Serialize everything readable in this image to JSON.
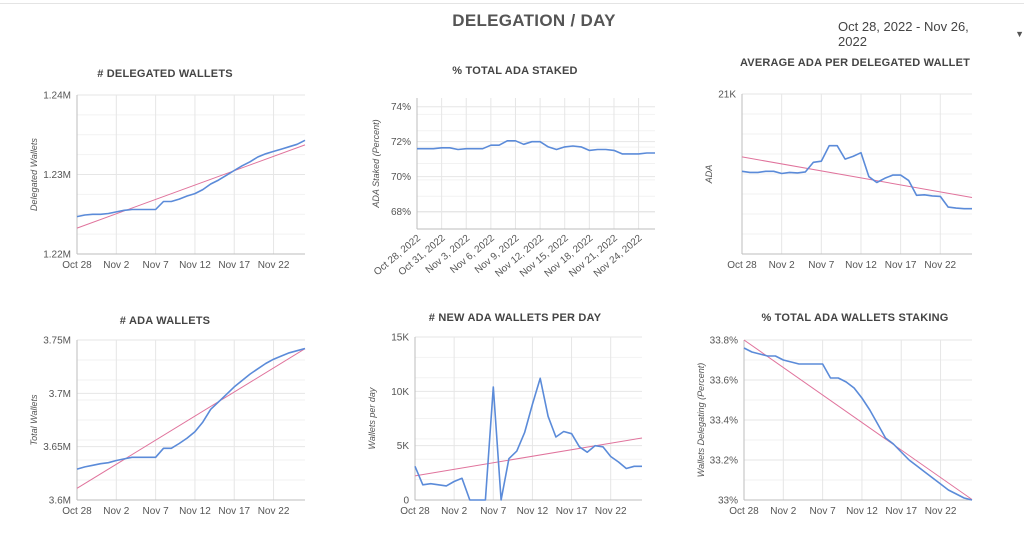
{
  "page": {
    "title": "DELEGATION / DAY",
    "date_range": "Oct 28, 2022 - Nov 26, 2022"
  },
  "colors": {
    "series": "#5b8bd9",
    "trend": "#e0739c",
    "grid": "#e6e6e6"
  },
  "chart_data": [
    {
      "id": "delegated-wallets",
      "type": "line",
      "title": "# DELEGATED WALLETS",
      "ylabel": "Delegated Wallets",
      "xlabel": "",
      "ylim": [
        1220000,
        1240000
      ],
      "yticks": [
        1220000,
        1230000,
        1240000
      ],
      "ytick_labels": [
        "1.22M",
        "1.23M",
        "1.24M"
      ],
      "x_start": "Oct 28",
      "xticks": [
        0,
        5,
        10,
        15,
        20,
        25
      ],
      "xtick_labels": [
        "Oct 28",
        "Nov 2",
        "Nov 7",
        "Nov 12",
        "Nov 17",
        "Nov 22"
      ],
      "xtick_rotated": false,
      "xmax": 29,
      "trendline": true,
      "series": [
        {
          "values": [
            1224700,
            1224900,
            1225000,
            1225000,
            1225100,
            1225300,
            1225500,
            1225600,
            1225600,
            1225600,
            1225600,
            1226600,
            1226600,
            1226900,
            1227300,
            1227600,
            1228100,
            1228800,
            1229300,
            1229900,
            1230500,
            1231100,
            1231600,
            1232200,
            1232600,
            1232900,
            1233200,
            1233500,
            1233800,
            1234300
          ]
        }
      ]
    },
    {
      "id": "total-ada-staked",
      "type": "line",
      "title": "% TOTAL ADA STAKED",
      "ylabel": "ADA Staked (Percent)",
      "xlabel": "",
      "ylim": [
        67,
        74.5
      ],
      "yticks": [
        68,
        70,
        72,
        74
      ],
      "ytick_labels": [
        "68%",
        "70%",
        "72%",
        "74%"
      ],
      "x_start": "Oct 28, 2022",
      "xticks": [
        0,
        3,
        6,
        9,
        12,
        15,
        18,
        21,
        24,
        27
      ],
      "xtick_labels": [
        "Oct 28, 2022",
        "Oct 31, 2022",
        "Nov 3, 2022",
        "Nov 6, 2022",
        "Nov 9, 2022",
        "Nov 12, 2022",
        "Nov 15, 2022",
        "Nov 18, 2022",
        "Nov 21, 2022",
        "Nov 24, 2022"
      ],
      "xtick_rotated": true,
      "xmax": 29,
      "trendline": false,
      "series": [
        {
          "values": [
            71.6,
            71.6,
            71.6,
            71.65,
            71.65,
            71.55,
            71.6,
            71.6,
            71.6,
            71.8,
            71.8,
            72.05,
            72.05,
            71.85,
            72.0,
            72.0,
            71.7,
            71.55,
            71.7,
            71.75,
            71.7,
            71.5,
            71.55,
            71.55,
            71.5,
            71.3,
            71.3,
            71.3,
            71.35,
            71.35
          ]
        }
      ]
    },
    {
      "id": "avg-ada-per-delegated-wallet",
      "type": "line",
      "title": "AVERAGE ADA PER DELEGATED WALLET",
      "ylabel": "ADA",
      "xlabel": "",
      "ylim": [
        18000,
        21000
      ],
      "yticks": [
        21000
      ],
      "ytick_labels": [
        "21K"
      ],
      "x_start": "Oct 28",
      "xticks": [
        0,
        5,
        10,
        15,
        20,
        25
      ],
      "xtick_labels": [
        "Oct 28",
        "Nov 2",
        "Nov 7",
        "Nov 12",
        "Nov 17",
        "Nov 22"
      ],
      "xtick_rotated": false,
      "xmax": 29,
      "trendline": true,
      "series": [
        {
          "values": [
            19550,
            19530,
            19530,
            19550,
            19550,
            19510,
            19530,
            19520,
            19540,
            19720,
            19740,
            20030,
            20030,
            19780,
            19830,
            19900,
            19450,
            19340,
            19420,
            19480,
            19480,
            19380,
            19100,
            19110,
            19090,
            19080,
            18880,
            18860,
            18850,
            18850
          ]
        }
      ]
    },
    {
      "id": "ada-wallets",
      "type": "line",
      "title": "# ADA WALLETS",
      "ylabel": "Total Wallets",
      "xlabel": "",
      "ylim": [
        3600000,
        3750000
      ],
      "yticks": [
        3600000,
        3650000,
        3700000,
        3750000
      ],
      "ytick_labels": [
        "3.6M",
        "3.65M",
        "3.7M",
        "3.75M"
      ],
      "x_start": "Oct 28",
      "xticks": [
        0,
        5,
        10,
        15,
        20,
        25
      ],
      "xtick_labels": [
        "Oct 28",
        "Nov 2",
        "Nov 7",
        "Nov 12",
        "Nov 17",
        "Nov 22"
      ],
      "xtick_rotated": false,
      "xmax": 29,
      "trendline": true,
      "series": [
        {
          "values": [
            3629000,
            3631000,
            3632500,
            3634000,
            3635000,
            3637000,
            3638500,
            3640000,
            3640000,
            3640000,
            3640000,
            3648500,
            3648500,
            3653000,
            3658000,
            3664000,
            3673000,
            3685000,
            3692000,
            3699000,
            3706000,
            3712000,
            3718000,
            3723000,
            3728000,
            3732000,
            3735000,
            3738000,
            3740000,
            3742000
          ]
        }
      ]
    },
    {
      "id": "new-ada-wallets-per-day",
      "type": "line",
      "title": "# NEW ADA WALLETS PER DAY",
      "ylabel": "Wallets per day",
      "xlabel": "",
      "ylim": [
        0,
        15000
      ],
      "yticks": [
        0,
        5000,
        10000,
        15000
      ],
      "ytick_labels": [
        "0",
        "5K",
        "10K",
        "15K"
      ],
      "x_start": "Oct 28",
      "xticks": [
        0,
        5,
        10,
        15,
        20,
        25
      ],
      "xtick_labels": [
        "Oct 28",
        "Nov 2",
        "Nov 7",
        "Nov 12",
        "Nov 17",
        "Nov 22"
      ],
      "xtick_rotated": false,
      "xmax": 29,
      "trendline": true,
      "series": [
        {
          "values": [
            3100,
            1400,
            1500,
            1400,
            1300,
            1700,
            2000,
            0,
            0,
            0,
            10400,
            0,
            3800,
            4500,
            6200,
            8800,
            11200,
            7700,
            5800,
            6300,
            6100,
            4900,
            4400,
            5000,
            4900,
            4000,
            3500,
            2900,
            3100,
            3100
          ]
        }
      ]
    },
    {
      "id": "total-ada-wallets-staking",
      "type": "line",
      "title": "% TOTAL ADA WALLETS STAKING",
      "ylabel": "Wallets Delegating (Percent)",
      "xlabel": "",
      "ylim": [
        33.0,
        33.8
      ],
      "yticks": [
        33.0,
        33.2,
        33.4,
        33.6,
        33.8
      ],
      "ytick_labels": [
        "33%",
        "33.2%",
        "33.4%",
        "33.6%",
        "33.8%"
      ],
      "x_start": "Oct 28",
      "xticks": [
        0,
        5,
        10,
        15,
        20,
        25
      ],
      "xtick_labels": [
        "Oct 28",
        "Nov 2",
        "Nov 7",
        "Nov 12",
        "Nov 17",
        "Nov 22"
      ],
      "xtick_rotated": false,
      "xmax": 29,
      "trendline": true,
      "series": [
        {
          "values": [
            33.76,
            33.74,
            33.73,
            33.72,
            33.72,
            33.7,
            33.69,
            33.68,
            33.68,
            33.68,
            33.68,
            33.61,
            33.61,
            33.59,
            33.56,
            33.51,
            33.45,
            33.38,
            33.31,
            33.28,
            33.24,
            33.2,
            33.17,
            33.14,
            33.11,
            33.08,
            33.05,
            33.03,
            33.01,
            33.0
          ]
        }
      ]
    }
  ]
}
